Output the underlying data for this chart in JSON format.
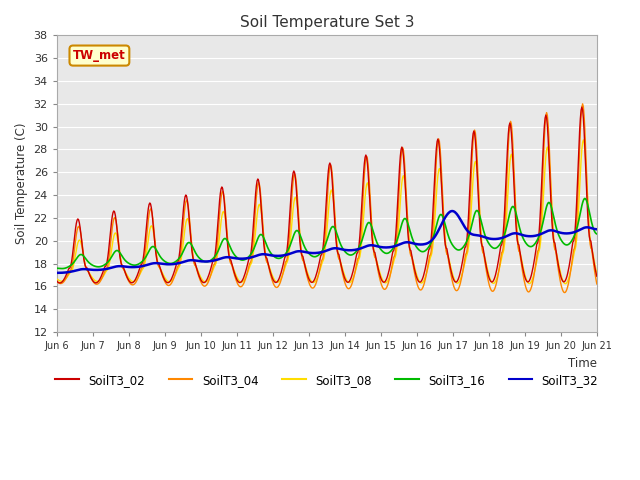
{
  "title": "Soil Temperature Set 3",
  "xlabel": "Time",
  "ylabel": "Soil Temperature (C)",
  "ylim": [
    12,
    38
  ],
  "yticks": [
    12,
    14,
    16,
    18,
    20,
    22,
    24,
    26,
    28,
    30,
    32,
    34,
    36,
    38
  ],
  "xtick_labels": [
    "Jun 6",
    "Jun 7",
    "Jun 8",
    "Jun 9",
    "Jun 10",
    "Jun 11",
    "Jun 12",
    "Jun 13",
    "Jun 14",
    "Jun 15",
    "Jun 16",
    "Jun 17",
    "Jun 18",
    "Jun 19",
    "Jun 20",
    "Jun 21"
  ],
  "legend_labels": [
    "SoilT3_02",
    "SoilT3_04",
    "SoilT3_08",
    "SoilT3_16",
    "SoilT3_32"
  ],
  "colors": {
    "SoilT3_02": "#cc0000",
    "SoilT3_04": "#ff8800",
    "SoilT3_08": "#ffdd00",
    "SoilT3_16": "#00bb00",
    "SoilT3_32": "#0000cc"
  },
  "background_color": "#e8e8e8",
  "annotation_text": "TW_met",
  "annotation_color": "#cc0000",
  "annotation_bg": "#ffffcc",
  "annotation_border": "#cc8800"
}
